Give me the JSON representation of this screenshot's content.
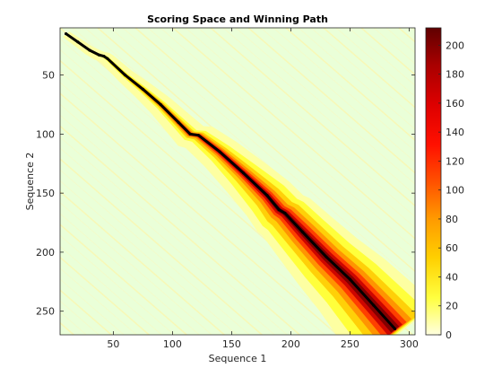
{
  "chart_data": {
    "type": "heatmap",
    "title": "Scoring Space and Winning Path",
    "xlabel": "Sequence 1",
    "ylabel": "Sequence 2",
    "xlim": [
      5,
      305
    ],
    "ylim": [
      270,
      10
    ],
    "x_ticks": [
      50,
      100,
      150,
      200,
      250,
      300
    ],
    "y_ticks": [
      50,
      100,
      150,
      200,
      250
    ],
    "y_reversed": true,
    "colormap": "hot (reversed)",
    "colorbar": {
      "min": 0,
      "max": 212,
      "ticks": [
        0,
        20,
        40,
        60,
        80,
        100,
        120,
        140,
        160,
        180,
        200
      ]
    },
    "background_color": "#eaffd8",
    "path": {
      "name": "Winning Path",
      "color": "#000000",
      "points": [
        [
          10,
          15
        ],
        [
          20,
          22
        ],
        [
          30,
          29
        ],
        [
          38,
          33
        ],
        [
          42,
          34
        ],
        [
          45,
          36
        ],
        [
          60,
          50
        ],
        [
          75,
          62
        ],
        [
          90,
          75
        ],
        [
          105,
          90
        ],
        [
          115,
          100
        ],
        [
          122,
          101
        ],
        [
          140,
          115
        ],
        [
          160,
          133
        ],
        [
          180,
          152
        ],
        [
          190,
          164
        ],
        [
          195,
          167
        ],
        [
          210,
          183
        ],
        [
          230,
          204
        ],
        [
          250,
          223
        ],
        [
          270,
          245
        ],
        [
          288,
          265
        ]
      ]
    }
  }
}
